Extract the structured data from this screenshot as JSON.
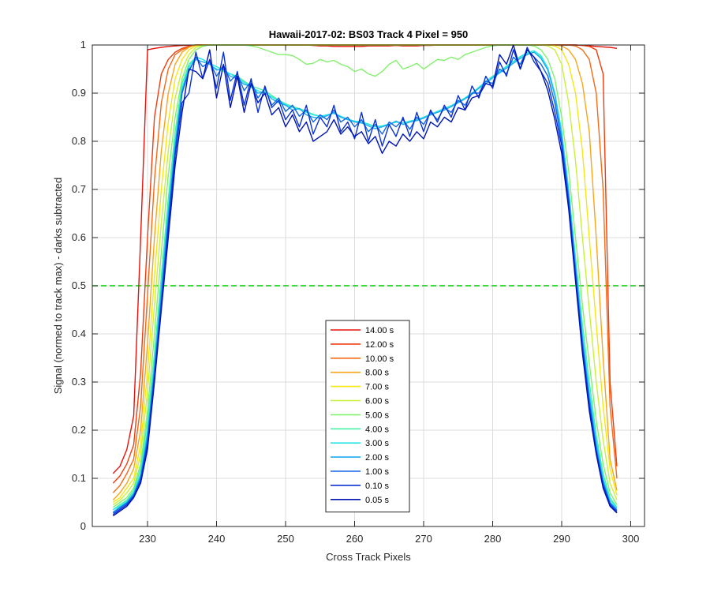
{
  "chart_data": {
    "type": "line",
    "title": "Hawaii-2017-02: BS03  Track 4 Pixel = 950",
    "xlabel": "Cross Track Pixels",
    "ylabel": "Signal (normed to track max) - darks subtracted",
    "xlim": [
      222,
      302
    ],
    "ylim": [
      0,
      1
    ],
    "xticks": [
      230,
      240,
      250,
      260,
      270,
      280,
      290,
      300
    ],
    "yticks": [
      0,
      0.1,
      0.2,
      0.3,
      0.4,
      0.5,
      0.6,
      0.7,
      0.8,
      0.9,
      1
    ],
    "grid": true,
    "legend_position": "lower-center",
    "reference_line": {
      "y": 0.5,
      "color": "#00cc00",
      "style": "dashed"
    },
    "x": [
      225,
      226,
      227,
      228,
      229,
      230,
      231,
      232,
      233,
      234,
      235,
      236,
      237,
      238,
      239,
      240,
      241,
      242,
      243,
      244,
      245,
      246,
      247,
      248,
      249,
      250,
      251,
      252,
      253,
      254,
      255,
      256,
      257,
      258,
      259,
      260,
      261,
      262,
      263,
      264,
      265,
      266,
      267,
      268,
      269,
      270,
      271,
      272,
      273,
      274,
      275,
      276,
      277,
      278,
      279,
      280,
      281,
      282,
      283,
      284,
      285,
      286,
      287,
      288,
      289,
      290,
      291,
      292,
      293,
      294,
      295,
      296,
      297,
      298
    ],
    "series": [
      {
        "name": "14.00 s",
        "color": "#e8120c",
        "values": [
          0.11,
          0.125,
          0.16,
          0.23,
          0.6,
          0.99,
          0.993,
          0.995,
          0.997,
          0.998,
          0.999,
          0.999,
          1.0,
          1.0,
          1.0,
          1.0,
          1.0,
          1.0,
          1.0,
          1.0,
          1.0,
          1.0,
          1.0,
          1.0,
          1.0,
          1.0,
          1.0,
          1.0,
          1.0,
          0.999,
          0.998,
          0.998,
          0.997,
          0.997,
          0.997,
          0.997,
          0.997,
          0.998,
          0.998,
          0.998,
          0.998,
          0.999,
          0.998,
          0.998,
          0.998,
          0.999,
          0.999,
          1.0,
          1.0,
          1.0,
          1.0,
          1.0,
          1.0,
          1.0,
          1.0,
          1.0,
          1.0,
          1.0,
          1.0,
          1.0,
          1.0,
          1.0,
          1.0,
          1.0,
          1.0,
          1.0,
          1.0,
          1.0,
          0.999,
          0.998,
          0.997,
          0.996,
          0.995,
          0.993
        ]
      },
      {
        "name": "12.00 s",
        "color": "#f03d0e",
        "values": [
          0.09,
          0.105,
          0.13,
          0.17,
          0.32,
          0.6,
          0.85,
          0.94,
          0.97,
          0.985,
          0.993,
          0.997,
          1.0,
          1.0,
          1.0,
          1.0,
          1.0,
          1.0,
          1.0,
          1.0,
          1.0,
          1.0,
          1.0,
          1.0,
          1.0,
          1.0,
          1.0,
          1.0,
          1.0,
          1.0,
          1.0,
          1.0,
          1.0,
          1.0,
          1.0,
          1.0,
          1.0,
          1.0,
          1.0,
          1.0,
          1.0,
          1.0,
          1.0,
          1.0,
          1.0,
          1.0,
          1.0,
          1.0,
          1.0,
          1.0,
          1.0,
          1.0,
          1.0,
          1.0,
          1.0,
          1.0,
          1.0,
          1.0,
          1.0,
          1.0,
          1.0,
          1.0,
          1.0,
          1.0,
          1.0,
          1.0,
          1.0,
          1.0,
          0.999,
          0.997,
          0.99,
          0.94,
          0.3,
          0.125
        ]
      },
      {
        "name": "10.00 s",
        "color": "#f56a14",
        "values": [
          0.07,
          0.085,
          0.11,
          0.14,
          0.25,
          0.48,
          0.72,
          0.88,
          0.95,
          0.98,
          0.99,
          0.996,
          1.0,
          1.0,
          1.0,
          1.0,
          1.0,
          1.0,
          1.0,
          1.0,
          1.0,
          1.0,
          1.0,
          1.0,
          1.0,
          1.0,
          1.0,
          1.0,
          1.0,
          1.0,
          1.0,
          1.0,
          1.0,
          1.0,
          1.0,
          1.0,
          1.0,
          1.0,
          1.0,
          1.0,
          1.0,
          1.0,
          1.0,
          1.0,
          1.0,
          1.0,
          1.0,
          1.0,
          1.0,
          1.0,
          1.0,
          1.0,
          1.0,
          1.0,
          1.0,
          1.0,
          1.0,
          1.0,
          1.0,
          1.0,
          1.0,
          1.0,
          1.0,
          1.0,
          1.0,
          1.0,
          1.0,
          0.998,
          0.99,
          0.97,
          0.9,
          0.7,
          0.25,
          0.1
        ]
      },
      {
        "name": "8.00 s",
        "color": "#f8a51a",
        "values": [
          0.055,
          0.07,
          0.09,
          0.12,
          0.2,
          0.38,
          0.6,
          0.78,
          0.9,
          0.96,
          0.985,
          0.995,
          1.0,
          1.0,
          1.0,
          1.0,
          1.0,
          1.0,
          1.0,
          1.0,
          1.0,
          1.0,
          1.0,
          1.0,
          1.0,
          1.0,
          1.0,
          1.0,
          1.0,
          1.0,
          1.0,
          1.0,
          1.0,
          1.0,
          1.0,
          1.0,
          1.0,
          1.0,
          1.0,
          1.0,
          1.0,
          1.0,
          1.0,
          1.0,
          1.0,
          1.0,
          1.0,
          1.0,
          1.0,
          1.0,
          1.0,
          1.0,
          1.0,
          1.0,
          1.0,
          1.0,
          1.0,
          1.0,
          1.0,
          1.0,
          1.0,
          1.0,
          1.0,
          1.0,
          1.0,
          0.998,
          0.99,
          0.97,
          0.92,
          0.82,
          0.6,
          0.35,
          0.14,
          0.075
        ]
      },
      {
        "name": "7.00 s",
        "color": "#f6e614",
        "values": [
          0.05,
          0.06,
          0.08,
          0.1,
          0.17,
          0.32,
          0.52,
          0.7,
          0.84,
          0.93,
          0.97,
          0.99,
          0.998,
          1.0,
          1.0,
          1.0,
          1.0,
          1.0,
          1.0,
          1.0,
          1.0,
          1.0,
          1.0,
          1.0,
          1.0,
          1.0,
          1.0,
          1.0,
          1.0,
          1.0,
          1.0,
          1.0,
          1.0,
          1.0,
          1.0,
          1.0,
          1.0,
          1.0,
          1.0,
          1.0,
          1.0,
          1.0,
          1.0,
          1.0,
          1.0,
          1.0,
          1.0,
          1.0,
          1.0,
          1.0,
          1.0,
          1.0,
          1.0,
          1.0,
          1.0,
          1.0,
          1.0,
          1.0,
          1.0,
          1.0,
          1.0,
          1.0,
          1.0,
          1.0,
          0.998,
          0.99,
          0.96,
          0.9,
          0.78,
          0.6,
          0.42,
          0.25,
          0.12,
          0.065
        ]
      },
      {
        "name": "6.00 s",
        "color": "#c8f03c",
        "values": [
          0.045,
          0.055,
          0.07,
          0.09,
          0.15,
          0.28,
          0.46,
          0.63,
          0.78,
          0.89,
          0.95,
          0.98,
          0.995,
          0.999,
          1.0,
          1.0,
          1.0,
          1.0,
          1.0,
          1.0,
          1.0,
          1.0,
          1.0,
          1.0,
          1.0,
          1.0,
          1.0,
          1.0,
          1.0,
          1.0,
          1.0,
          1.0,
          1.0,
          1.0,
          1.0,
          1.0,
          1.0,
          1.0,
          1.0,
          1.0,
          1.0,
          1.0,
          1.0,
          1.0,
          1.0,
          1.0,
          1.0,
          1.0,
          1.0,
          1.0,
          1.0,
          1.0,
          1.0,
          1.0,
          1.0,
          1.0,
          1.0,
          1.0,
          1.0,
          1.0,
          1.0,
          1.0,
          1.0,
          0.998,
          0.99,
          0.96,
          0.88,
          0.76,
          0.6,
          0.45,
          0.3,
          0.18,
          0.09,
          0.055
        ]
      },
      {
        "name": "5.00 s",
        "color": "#82f06e",
        "values": [
          0.04,
          0.05,
          0.06,
          0.08,
          0.13,
          0.24,
          0.4,
          0.57,
          0.73,
          0.85,
          0.93,
          0.97,
          0.99,
          0.997,
          1.0,
          1.0,
          1.0,
          1.0,
          1.0,
          1.0,
          0.998,
          0.995,
          0.99,
          0.985,
          0.98,
          0.98,
          0.978,
          0.97,
          0.96,
          0.962,
          0.97,
          0.965,
          0.968,
          0.96,
          0.955,
          0.945,
          0.95,
          0.94,
          0.935,
          0.945,
          0.96,
          0.968,
          0.95,
          0.955,
          0.962,
          0.95,
          0.96,
          0.97,
          0.968,
          0.975,
          0.97,
          0.98,
          0.985,
          0.99,
          0.995,
          0.998,
          1.0,
          1.0,
          1.0,
          1.0,
          1.0,
          0.998,
          0.99,
          0.97,
          0.93,
          0.85,
          0.74,
          0.6,
          0.46,
          0.34,
          0.22,
          0.13,
          0.07,
          0.045
        ]
      },
      {
        "name": "4.00 s",
        "color": "#46f0a5",
        "values": [
          0.035,
          0.045,
          0.055,
          0.075,
          0.12,
          0.22,
          0.36,
          0.52,
          0.68,
          0.82,
          0.92,
          0.96,
          0.975,
          0.97,
          0.96,
          0.95,
          0.945,
          0.94,
          0.935,
          0.925,
          0.915,
          0.91,
          0.905,
          0.895,
          0.885,
          0.878,
          0.872,
          0.868,
          0.862,
          0.856,
          0.852,
          0.855,
          0.858,
          0.85,
          0.845,
          0.842,
          0.84,
          0.835,
          0.83,
          0.832,
          0.835,
          0.84,
          0.838,
          0.842,
          0.845,
          0.85,
          0.856,
          0.862,
          0.868,
          0.874,
          0.882,
          0.89,
          0.9,
          0.912,
          0.925,
          0.935,
          0.945,
          0.955,
          0.965,
          0.975,
          0.982,
          0.985,
          0.975,
          0.95,
          0.9,
          0.82,
          0.7,
          0.56,
          0.42,
          0.3,
          0.19,
          0.11,
          0.06,
          0.04
        ]
      },
      {
        "name": "3.00 s",
        "color": "#28e6e6",
        "values": [
          0.035,
          0.042,
          0.052,
          0.07,
          0.11,
          0.2,
          0.34,
          0.5,
          0.66,
          0.8,
          0.91,
          0.955,
          0.975,
          0.97,
          0.962,
          0.955,
          0.948,
          0.94,
          0.932,
          0.922,
          0.912,
          0.905,
          0.9,
          0.892,
          0.884,
          0.876,
          0.87,
          0.866,
          0.86,
          0.855,
          0.852,
          0.855,
          0.858,
          0.852,
          0.846,
          0.842,
          0.84,
          0.836,
          0.83,
          0.832,
          0.836,
          0.84,
          0.838,
          0.842,
          0.845,
          0.85,
          0.856,
          0.862,
          0.868,
          0.874,
          0.882,
          0.89,
          0.9,
          0.912,
          0.924,
          0.934,
          0.944,
          0.956,
          0.966,
          0.976,
          0.984,
          0.988,
          0.978,
          0.952,
          0.9,
          0.82,
          0.7,
          0.55,
          0.4,
          0.28,
          0.18,
          0.1,
          0.055,
          0.038
        ]
      },
      {
        "name": "2.00 s",
        "color": "#1eaaf0",
        "values": [
          0.03,
          0.04,
          0.05,
          0.068,
          0.105,
          0.19,
          0.33,
          0.49,
          0.65,
          0.79,
          0.905,
          0.95,
          0.97,
          0.965,
          0.96,
          0.948,
          0.95,
          0.935,
          0.93,
          0.918,
          0.915,
          0.9,
          0.902,
          0.888,
          0.88,
          0.875,
          0.865,
          0.868,
          0.855,
          0.85,
          0.848,
          0.853,
          0.86,
          0.85,
          0.845,
          0.84,
          0.838,
          0.832,
          0.826,
          0.83,
          0.835,
          0.842,
          0.835,
          0.84,
          0.843,
          0.848,
          0.855,
          0.86,
          0.865,
          0.872,
          0.88,
          0.888,
          0.898,
          0.91,
          0.92,
          0.932,
          0.942,
          0.952,
          0.962,
          0.972,
          0.98,
          0.985,
          0.972,
          0.948,
          0.895,
          0.81,
          0.69,
          0.54,
          0.39,
          0.27,
          0.17,
          0.095,
          0.05,
          0.035
        ]
      },
      {
        "name": "1.00 s",
        "color": "#1464e6",
        "values": [
          0.028,
          0.038,
          0.048,
          0.065,
          0.1,
          0.18,
          0.32,
          0.47,
          0.63,
          0.78,
          0.9,
          0.945,
          0.975,
          0.955,
          0.965,
          0.935,
          0.958,
          0.925,
          0.94,
          0.905,
          0.925,
          0.89,
          0.91,
          0.875,
          0.89,
          0.862,
          0.875,
          0.852,
          0.865,
          0.84,
          0.855,
          0.845,
          0.865,
          0.84,
          0.85,
          0.83,
          0.845,
          0.82,
          0.835,
          0.815,
          0.84,
          0.83,
          0.845,
          0.825,
          0.85,
          0.835,
          0.86,
          0.845,
          0.87,
          0.86,
          0.885,
          0.875,
          0.9,
          0.9,
          0.925,
          0.92,
          0.95,
          0.94,
          0.975,
          0.96,
          0.99,
          0.975,
          0.96,
          0.935,
          0.88,
          0.8,
          0.68,
          0.53,
          0.38,
          0.26,
          0.16,
          0.09,
          0.048,
          0.033
        ]
      },
      {
        "name": "0.10 s",
        "color": "#0a32d2",
        "values": [
          0.025,
          0.035,
          0.045,
          0.062,
          0.095,
          0.17,
          0.31,
          0.46,
          0.62,
          0.77,
          0.88,
          0.9,
          0.985,
          0.93,
          0.97,
          0.91,
          0.985,
          0.885,
          0.945,
          0.875,
          0.93,
          0.86,
          0.915,
          0.87,
          0.885,
          0.845,
          0.865,
          0.83,
          0.875,
          0.815,
          0.85,
          0.83,
          0.875,
          0.82,
          0.84,
          0.805,
          0.86,
          0.8,
          0.845,
          0.79,
          0.835,
          0.81,
          0.85,
          0.81,
          0.86,
          0.82,
          0.865,
          0.84,
          0.875,
          0.85,
          0.895,
          0.865,
          0.915,
          0.89,
          0.935,
          0.91,
          0.965,
          0.935,
          0.99,
          0.95,
          0.995,
          0.965,
          0.945,
          0.92,
          0.86,
          0.79,
          0.67,
          0.52,
          0.37,
          0.25,
          0.155,
          0.085,
          0.045,
          0.03
        ]
      },
      {
        "name": "0.05 s",
        "color": "#0014b4",
        "values": [
          0.022,
          0.032,
          0.042,
          0.06,
          0.09,
          0.16,
          0.3,
          0.45,
          0.6,
          0.75,
          0.86,
          0.95,
          0.945,
          0.93,
          0.99,
          0.89,
          0.96,
          0.87,
          0.935,
          0.86,
          0.92,
          0.88,
          0.9,
          0.855,
          0.87,
          0.83,
          0.855,
          0.82,
          0.84,
          0.8,
          0.81,
          0.82,
          0.845,
          0.815,
          0.83,
          0.81,
          0.82,
          0.795,
          0.81,
          0.775,
          0.8,
          0.79,
          0.815,
          0.8,
          0.82,
          0.805,
          0.84,
          0.83,
          0.85,
          0.84,
          0.87,
          0.865,
          0.89,
          0.895,
          0.92,
          0.915,
          0.98,
          0.96,
          1.0,
          0.95,
          0.99,
          0.975,
          0.945,
          0.905,
          0.845,
          0.775,
          0.66,
          0.51,
          0.36,
          0.24,
          0.15,
          0.08,
          0.042,
          0.028
        ]
      }
    ]
  }
}
